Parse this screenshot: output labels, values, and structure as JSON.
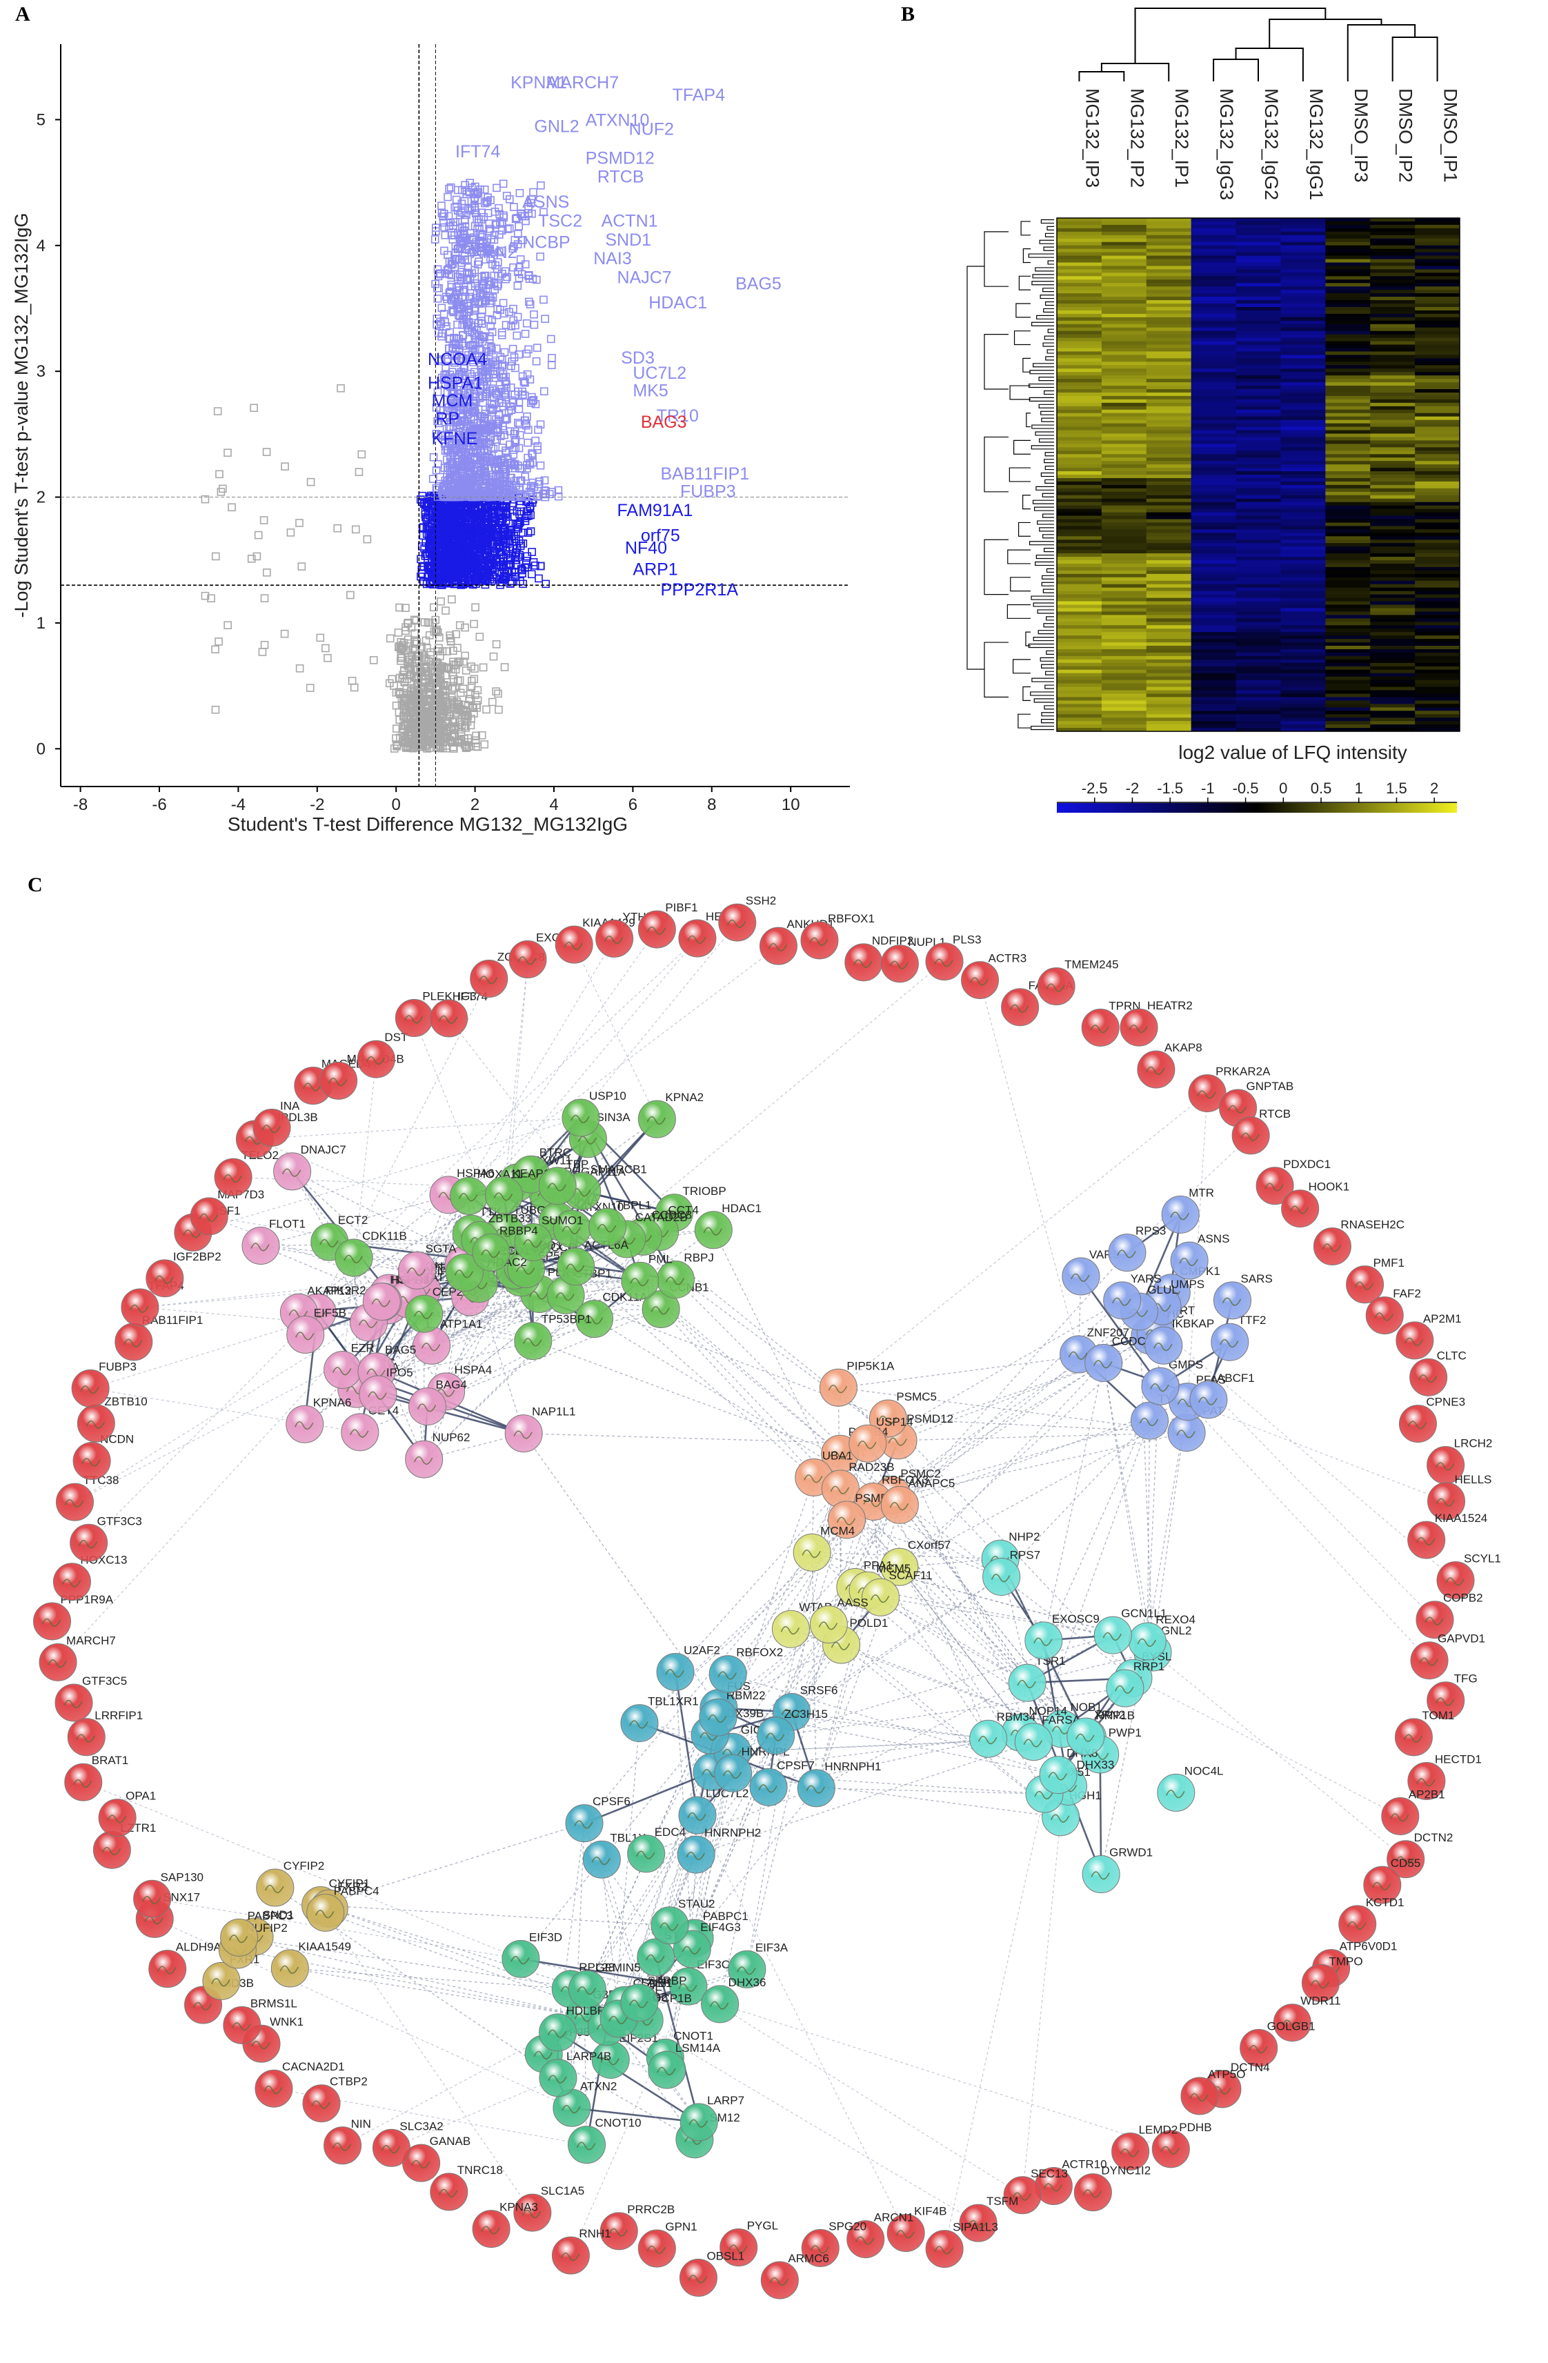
{
  "panels": {
    "a": "A",
    "b": "B",
    "c": "C"
  },
  "colors": {
    "up_light": "#8c8cf0",
    "up_dark": "#1a1ae6",
    "highlight": "#e0303a",
    "nonsig": "#a8a8a8",
    "heat_low": "#1010e0",
    "heat_mid": "#000000",
    "heat_high": "#f0f020"
  },
  "chart_data": [
    {
      "type": "scatter",
      "title": "",
      "xlabel": "Student's T-test Difference MG132_MG132IgG",
      "ylabel": "-Log Student's T-test p-value MG132_MG132IgG",
      "xlim": [
        -8.5,
        11.5
      ],
      "ylim": [
        -0.3,
        5.6
      ],
      "xticks": [
        "-8",
        "-6",
        "-4",
        "-2",
        "0",
        "2",
        "4",
        "6",
        "8",
        "10"
      ],
      "yticks": [
        "0",
        "1",
        "2",
        "3",
        "4",
        "5"
      ],
      "thresholds": {
        "x": [
          0.58,
          1.0
        ],
        "y": [
          1.3,
          2.0
        ]
      },
      "labels_light": [
        {
          "t": "KPNA1",
          "x": 2.9,
          "y": 5.25
        },
        {
          "t": "MARCH7",
          "x": 3.8,
          "y": 5.25
        },
        {
          "t": "TFAP4",
          "x": 7.0,
          "y": 5.15
        },
        {
          "t": "GNL2",
          "x": 3.5,
          "y": 4.9
        },
        {
          "t": "ATXN10",
          "x": 4.8,
          "y": 4.95
        },
        {
          "t": "NUF2",
          "x": 5.9,
          "y": 4.88
        },
        {
          "t": "IFT74",
          "x": 1.5,
          "y": 4.7
        },
        {
          "t": "PSMD12",
          "x": 4.8,
          "y": 4.65
        },
        {
          "t": "RTCB",
          "x": 5.1,
          "y": 4.5
        },
        {
          "t": "ASNS",
          "x": 3.2,
          "y": 4.3
        },
        {
          "t": "TSC2",
          "x": 3.6,
          "y": 4.15
        },
        {
          "t": "ACTN1",
          "x": 5.2,
          "y": 4.15
        },
        {
          "t": "SND1",
          "x": 5.3,
          "y": 4.0
        },
        {
          "t": "XRN2",
          "x": 1.9,
          "y": 3.9
        },
        {
          "t": "NCBP",
          "x": 3.2,
          "y": 3.98
        },
        {
          "t": "NAI3",
          "x": 5.0,
          "y": 3.85
        },
        {
          "t": "NAJC7",
          "x": 5.6,
          "y": 3.7
        },
        {
          "t": "BAG5",
          "x": 8.6,
          "y": 3.65
        },
        {
          "t": "HDAC1",
          "x": 6.4,
          "y": 3.5
        },
        {
          "t": "SD3",
          "x": 5.7,
          "y": 3.06
        },
        {
          "t": "UC7L2",
          "x": 6.0,
          "y": 2.94
        },
        {
          "t": "MK5",
          "x": 6.0,
          "y": 2.8
        },
        {
          "t": "TR10",
          "x": 6.6,
          "y": 2.6
        },
        {
          "t": "BAB11FIP1",
          "x": 6.7,
          "y": 2.14
        },
        {
          "t": "FUBP3",
          "x": 7.2,
          "y": 2.0
        }
      ],
      "labels_dark": [
        {
          "t": "NCOA4",
          "x": 0.8,
          "y": 3.05
        },
        {
          "t": "HSPA1",
          "x": 0.8,
          "y": 2.86
        },
        {
          "t": "MCM",
          "x": 0.9,
          "y": 2.72
        },
        {
          "t": "RP",
          "x": 1.0,
          "y": 2.58
        },
        {
          "t": "KFNE",
          "x": 0.9,
          "y": 2.42
        },
        {
          "t": "FAM91A1",
          "x": 5.6,
          "y": 1.85
        },
        {
          "t": "orf75",
          "x": 6.2,
          "y": 1.65
        },
        {
          "t": "NF40",
          "x": 5.8,
          "y": 1.55
        },
        {
          "t": "ARP1",
          "x": 6.0,
          "y": 1.38
        },
        {
          "t": "PPP2R1A",
          "x": 6.7,
          "y": 1.22
        }
      ],
      "labels_highlight": [
        {
          "t": "BAG3",
          "x": 6.2,
          "y": 2.55
        }
      ]
    },
    {
      "type": "heatmap",
      "title": "log2 value of LFQ intensity",
      "columns": [
        "MG132_IP3",
        "MG132_IP2",
        "MG132_IP1",
        "MG132_IgG3",
        "MG132_IgG2",
        "MG132_IgG1",
        "DMSO_IP3",
        "DMSO_IP2",
        "DMSO_IP1"
      ],
      "scale_ticks": [
        "-2.5",
        "-2",
        "-1.5",
        "-1",
        "-0.5",
        "0",
        "0.5",
        "1",
        "1.5",
        "2"
      ],
      "scale_range": [
        -3,
        2.3
      ]
    },
    {
      "type": "network",
      "title": "",
      "clusters": {
        "red": [
          "NDFIP2",
          "NUPL1",
          "PLS3",
          "ACTR3",
          "FAM98A",
          "TMEM245",
          "TPRN",
          "HEATR2",
          "AKAP8",
          "PRKAR2A",
          "GNPTAB",
          "RTCB",
          "PDXDC1",
          "HOOK1",
          "RNASEH2C",
          "PMF1",
          "FAF2",
          "AP2M1",
          "CLTC",
          "CPNE3",
          "LRCH2",
          "HELLS",
          "KIAA1524",
          "SCYL1",
          "COPB2",
          "GAPVD1",
          "TFG",
          "TOM1",
          "HECTD1",
          "AP2B1",
          "DCTN2",
          "CD55",
          "KCTD1",
          "ATP6V0D1",
          "TMPO",
          "WDR11",
          "GOLGB1",
          "DCTN4",
          "ATP5O",
          "PDHB",
          "LEMD2",
          "DYNC1I2",
          "ACTR10",
          "SEC13",
          "TSFM",
          "SIPA1L3",
          "KIF4B",
          "ARCN1",
          "SPG20",
          "ARMC6",
          "PYGL",
          "OBSL1",
          "GPN1",
          "PRRC2B",
          "RNH1",
          "SLC1A5",
          "KPNA3",
          "TNRC18",
          "GANAB",
          "SLC3A2",
          "NIN",
          "CTBP2",
          "CACNA2D1",
          "WNK1",
          "BRMS1L",
          "ARID3B",
          "ALDH9A1",
          "SNX17",
          "SAP130",
          "LZTR1",
          "OPA1",
          "BRAT1",
          "LRRFIP1",
          "GTF3C5",
          "MARCH7",
          "PPP1R9A",
          "HOXC13",
          "GTF3C3",
          "TTC38",
          "NCDN",
          "ZBTB10",
          "FUBP3",
          "RAB11FIP1",
          "TFAP4",
          "IGF2BP2",
          "GRSF1",
          "MAP7D3",
          "TELO2",
          "SMPDL3B",
          "INA",
          "MAGED4",
          "MAGED4B",
          "DST",
          "PLEKHG3",
          "IFT74",
          "ZCCHC8",
          "EXOC4",
          "KIAA1429",
          "YTHDF3",
          "PIBF1",
          "HELZ",
          "SSH2",
          "ANKHD1",
          "RBFOX1"
        ],
        "pink": [
          "FLOT1",
          "PIK3R2",
          "GNAI3",
          "PDCD6IP",
          "ATP1A1",
          "YES1",
          "SRC",
          "RELA",
          "HLA-A",
          "PTPN13",
          "STAT1",
          "EZR",
          "ACTN1",
          "AKAP12",
          "HSPA6",
          "HSPB8",
          "HSPA4",
          "HSPH1",
          "SGTA",
          "BAG5",
          "DNAJC7",
          "BAG4",
          "CDC73",
          "NUP62",
          "EIF5B",
          "GET4",
          "KPNA6",
          "IPO5",
          "NAP1L1",
          "RUVBL2"
        ],
        "green": [
          "TRIOBP",
          "ARHGAP11A",
          "ECT2",
          "TTK",
          "FBXW11",
          "PLK1",
          "CEP55",
          "CEP250",
          "CDK11A",
          "TUBGCP2",
          "CDK11B",
          "NUF2",
          "XPO1",
          "KIF4A",
          "BTRC",
          "ERCC6L",
          "CCNB1",
          "ATXN10",
          "HOXA11",
          "CCT4",
          "CTBP1",
          "RBPJ",
          "ZBTB33",
          "SIN3A",
          "HDAC1",
          "HDAC2",
          "CCDC8",
          "SMARCD1",
          "CATAD2B",
          "SMARCB1",
          "PML",
          "TP53BP1",
          "KEAP1",
          "SUMO1",
          "ACTL6A",
          "RBBP4",
          "TBP",
          "TBPL1",
          "USP10",
          "KPNA2"
        ],
        "orange": [
          "PSMC2",
          "PSMD12",
          "PSMC5",
          "PSMB4",
          "UBA1",
          "RAD23B",
          "USP14",
          "PIP5K1A",
          "RBFOX3",
          "PSMD2",
          "ANAPC5"
        ],
        "blue": [
          "ATIC",
          "MTR",
          "TYMS",
          "PPAT",
          "APRT",
          "TTF2",
          "ZNF207",
          "CCDC22",
          "CMPK1",
          "UMPS",
          "PFAS",
          "ASNS",
          "GLUL",
          "GMPS",
          "SARS",
          "ABCF1",
          "YARS",
          "VARS",
          "IKBKAP",
          "RPS3"
        ],
        "yellow": [
          "CXorf57",
          "POLD1",
          "PPA1",
          "MCM5",
          "MCM4",
          "SCAF11",
          "WTAP",
          "AASS"
        ],
        "teal": [
          "FUS",
          "SRRT",
          "LUC7L2",
          "GIGYF2",
          "SRSF6",
          "HNRNPH1",
          "HNRNPH2",
          "DDX39B",
          "U2AF2",
          "RBM22",
          "HNRNPL",
          "RBFOX2",
          "CPSF6",
          "CPSF7",
          "TBL1XR1",
          "TBL1X",
          "ZC3H15"
        ],
        "cyan": [
          "RRP1B",
          "GRWD1",
          "NOB1",
          "NHP2",
          "PWP1",
          "GNL2",
          "HGH1",
          "BYSL",
          "NOC4L",
          "RRP1",
          "REXO4",
          "TSR1",
          "DHX33",
          "DDX51",
          "NOP14",
          "GCN1L1",
          "RBM34",
          "DHX8",
          "RPS7",
          "FARSA",
          "XRN2",
          "EXOSC9"
        ],
        "gold": [
          "CYFIP2",
          "CYFIP1",
          "KIAA1549",
          "SND1",
          "FXR2",
          "FXR1",
          "PABPC4",
          "NUFIP2",
          "PABPC3"
        ],
        "mint": [
          "CNOT10",
          "LSM12",
          "NUP98",
          "LARP4",
          "CNOT1",
          "STAU1",
          "G3BP1",
          "EIF3C",
          "EIF2S1",
          "EIF3A",
          "RPL28",
          "DDX6",
          "PABPC1",
          "GEMIN5",
          "HDLBP",
          "LSM14A",
          "ATXN2",
          "LARP7",
          "EIF3D",
          "EIF3F",
          "EIF4G3",
          "DHX36",
          "CSDE1",
          "DCP1B",
          "EDC4",
          "LARP4B",
          "EIF4G2",
          "STAU2",
          "STRBP"
        ]
      }
    }
  ]
}
